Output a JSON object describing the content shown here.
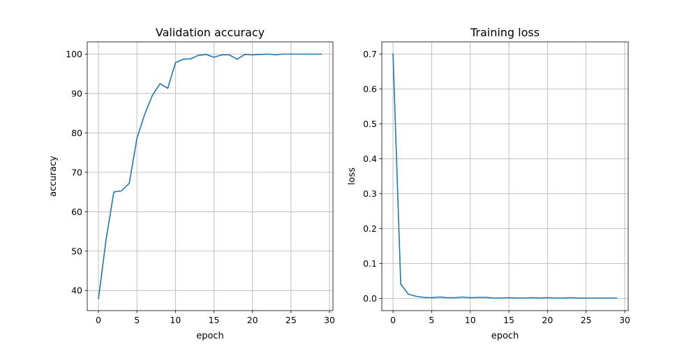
{
  "figure": {
    "background": "#ffffff"
  },
  "chart_data": [
    {
      "type": "line",
      "title": "Validation accuracy",
      "xlabel": "epoch",
      "ylabel": "accuracy",
      "xlim": [
        -1.45,
        30.45
      ],
      "ylim": [
        34.9,
        103.1
      ],
      "xticks": [
        0,
        5,
        10,
        15,
        20,
        25,
        30
      ],
      "yticks": [
        40,
        50,
        60,
        70,
        80,
        90,
        100
      ],
      "grid": true,
      "series_color": "#1f77b4",
      "series": [
        {
          "x": [
            0,
            1,
            2,
            3,
            4,
            5,
            6,
            7,
            8,
            9,
            10,
            11,
            12,
            13,
            14,
            15,
            16,
            17,
            18,
            19,
            20,
            21,
            22,
            23,
            24,
            25,
            26,
            27,
            28,
            29
          ],
          "values": [
            37.8,
            53.0,
            65.0,
            65.3,
            67.2,
            78.6,
            84.7,
            89.5,
            92.5,
            91.3,
            97.8,
            98.7,
            98.8,
            99.7,
            99.9,
            99.2,
            99.8,
            99.8,
            98.7,
            99.9,
            99.8,
            99.9,
            100.0,
            99.8,
            100.0,
            100.0,
            100.0,
            100.0,
            100.0,
            100.0
          ]
        }
      ]
    },
    {
      "type": "line",
      "title": "Training loss",
      "xlabel": "epoch",
      "ylabel": "loss",
      "xlim": [
        -1.45,
        30.45
      ],
      "ylim": [
        -0.035,
        0.735
      ],
      "xticks": [
        0,
        5,
        10,
        15,
        20,
        25,
        30
      ],
      "yticks": [
        0.0,
        0.1,
        0.2,
        0.3,
        0.4,
        0.5,
        0.6,
        0.7
      ],
      "ytick_format": 1,
      "grid": true,
      "series_color": "#1f77b4",
      "series": [
        {
          "x": [
            0,
            1,
            2,
            3,
            4,
            5,
            6,
            7,
            8,
            9,
            10,
            11,
            12,
            13,
            14,
            15,
            16,
            17,
            18,
            19,
            20,
            21,
            22,
            23,
            24,
            25,
            26,
            27,
            28,
            29
          ],
          "values": [
            0.702,
            0.041,
            0.012,
            0.006,
            0.003,
            0.002,
            0.004,
            0.002,
            0.002,
            0.004,
            0.002,
            0.003,
            0.003,
            0.001,
            0.001,
            0.002,
            0.001,
            0.001,
            0.002,
            0.001,
            0.002,
            0.001,
            0.001,
            0.002,
            0.001,
            0.001,
            0.001,
            0.001,
            0.001,
            0.001
          ]
        }
      ]
    }
  ]
}
